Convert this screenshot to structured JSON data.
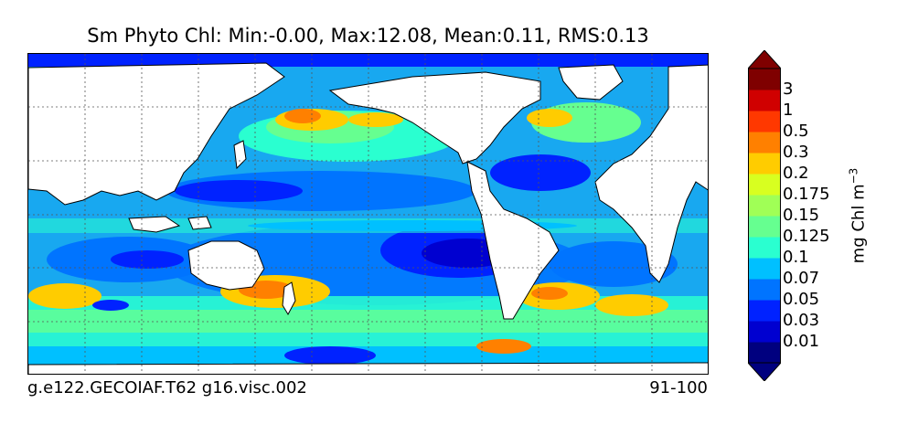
{
  "title": "Sm Phyto Chl: Min:-0.00, Max:12.08, Mean:0.11, RMS:0.13",
  "footer": {
    "case_name": "g.e122.GECOIAF.T62 g16.visc.002",
    "years": "91-100"
  },
  "colorbar": {
    "units_prefix": "mg Chl m",
    "units_exponent": "−3",
    "levels": [
      "0.01",
      "0.03",
      "0.05",
      "0.07",
      "0.1",
      "0.125",
      "0.15",
      "0.175",
      "0.2",
      "0.3",
      "0.5",
      "1",
      "3"
    ],
    "colors": [
      "#00007f",
      "#0000d0",
      "#0022ff",
      "#0074ff",
      "#00c0ff",
      "#2affd0",
      "#66ff90",
      "#a0ff56",
      "#d8ff20",
      "#ffcc00",
      "#ff8000",
      "#ff3800",
      "#d00000",
      "#7f0000"
    ],
    "extend": "both"
  },
  "colors": {
    "land": "#ffffff",
    "ocean_base": "#18a8f0",
    "gridline": "#555555"
  }
}
